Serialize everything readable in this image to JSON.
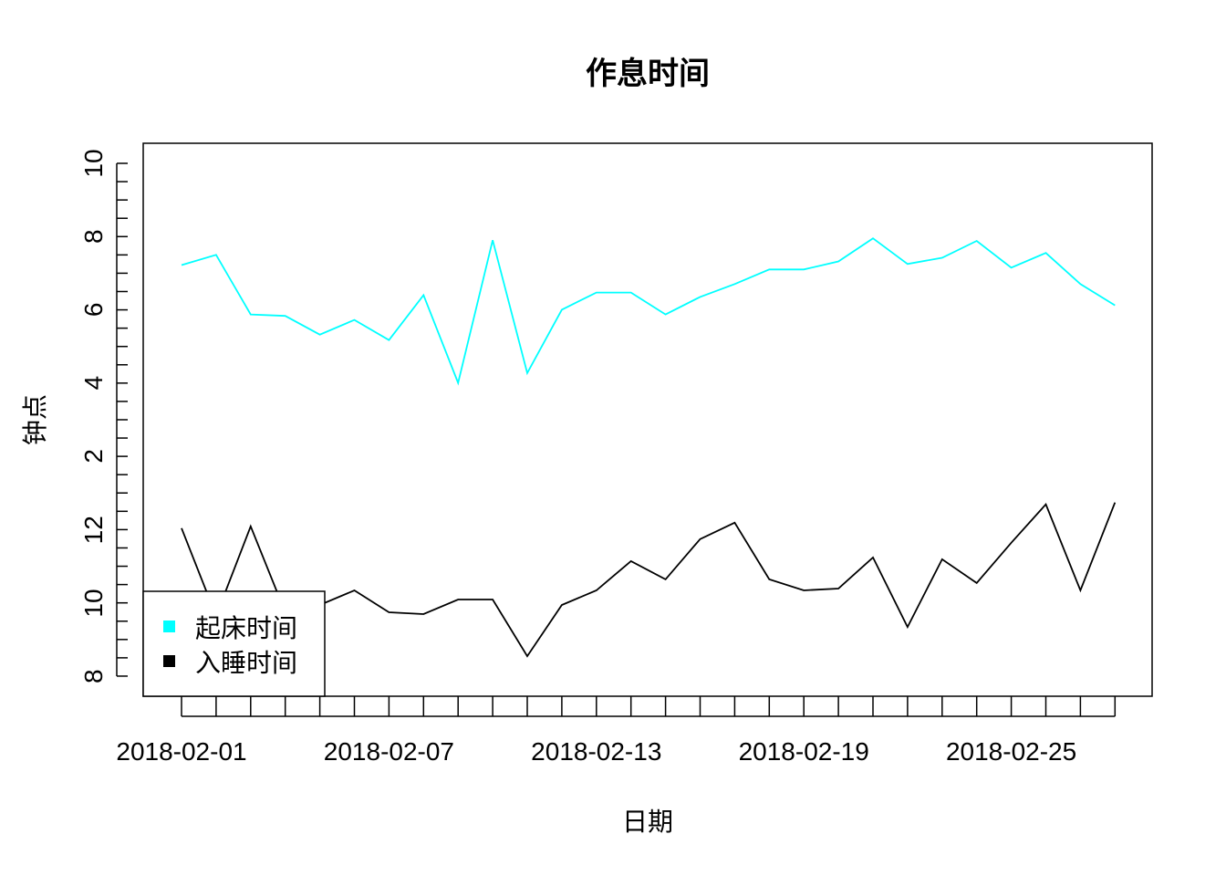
{
  "chart_data": {
    "type": "line",
    "title": "作息时间",
    "xlabel": "日期",
    "ylabel": "钟点",
    "x": [
      "2018-02-01",
      "2018-02-02",
      "2018-02-03",
      "2018-02-04",
      "2018-02-05",
      "2018-02-06",
      "2018-02-07",
      "2018-02-08",
      "2018-02-09",
      "2018-02-10",
      "2018-02-11",
      "2018-02-12",
      "2018-02-13",
      "2018-02-14",
      "2018-02-15",
      "2018-02-16",
      "2018-02-17",
      "2018-02-18",
      "2018-02-19",
      "2018-02-20",
      "2018-02-21",
      "2018-02-22",
      "2018-02-23",
      "2018-02-24",
      "2018-02-25",
      "2018-02-26",
      "2018-02-27",
      "2018-02-28"
    ],
    "x_tick_labels": [
      "2018-02-01",
      "2018-02-07",
      "2018-02-13",
      "2018-02-19",
      "2018-02-25"
    ],
    "y_ticks_upper": [
      "2",
      "4",
      "6",
      "8",
      "10"
    ],
    "y_ticks_lower": [
      "8",
      "10",
      "12"
    ],
    "legend_position": "bottom-left",
    "grid": false,
    "series": [
      {
        "name": "起床时间",
        "color": "#00ffff",
        "values": [
          7.22,
          7.5,
          5.87,
          5.83,
          5.32,
          5.72,
          5.17,
          6.4,
          4.0,
          7.9,
          4.27,
          6.0,
          6.47,
          6.47,
          5.87,
          6.35,
          6.7,
          7.1,
          7.1,
          7.32,
          7.95,
          7.25,
          7.42,
          7.88,
          7.15,
          7.55,
          6.7,
          6.12
        ]
      },
      {
        "name": "入睡时间",
        "color": "#000000",
        "values": [
          12.05,
          9.65,
          12.1,
          9.75,
          9.95,
          10.35,
          9.75,
          9.7,
          10.1,
          10.1,
          8.55,
          9.95,
          10.35,
          11.15,
          10.65,
          11.75,
          12.2,
          10.65,
          10.35,
          10.4,
          11.25,
          9.35,
          11.2,
          10.55,
          11.65,
          12.7,
          10.35,
          12.75
        ]
      }
    ]
  }
}
